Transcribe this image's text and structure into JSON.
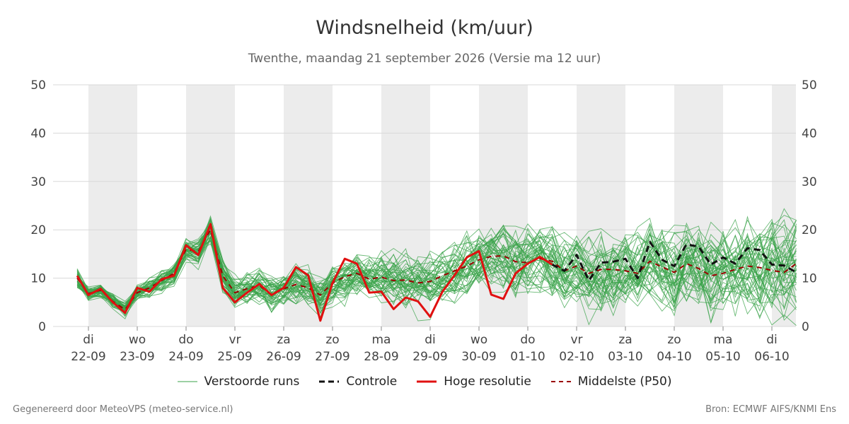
{
  "header": {
    "title": "Windsnelheid (km/uur)",
    "subtitle": "Twenthe, maandag 21 september 2026 (Versie ma 12 uur)"
  },
  "footer": {
    "left": "Gegenereerd door MeteoVPS (meteo-service.nl)",
    "right": "Bron: ECMWF AIFS/KNMI Ens"
  },
  "legend": [
    {
      "label": "Verstoorde runs",
      "color": "#3aa34a",
      "style": "thin-solid"
    },
    {
      "label": "Controle",
      "color": "#111111",
      "style": "dashed"
    },
    {
      "label": "Hoge resolutie",
      "color": "#e01010",
      "style": "solid"
    },
    {
      "label": "Middelste (P50)",
      "color": "#9b0000",
      "style": "dashed"
    }
  ],
  "chart_data": {
    "type": "line",
    "ylim": [
      0,
      50
    ],
    "yticks": [
      0,
      10,
      20,
      30,
      40,
      50
    ],
    "grid": true,
    "day_labels": [
      {
        "day": "di",
        "date": "22-09"
      },
      {
        "day": "wo",
        "date": "23-09"
      },
      {
        "day": "do",
        "date": "24-09"
      },
      {
        "day": "vr",
        "date": "25-09"
      },
      {
        "day": "za",
        "date": "26-09"
      },
      {
        "day": "zo",
        "date": "27-09"
      },
      {
        "day": "ma",
        "date": "28-09"
      },
      {
        "day": "di",
        "date": "29-09"
      },
      {
        "day": "wo",
        "date": "30-09"
      },
      {
        "day": "do",
        "date": "01-10"
      },
      {
        "day": "vr",
        "date": "02-10"
      },
      {
        "day": "za",
        "date": "03-10"
      },
      {
        "day": "zo",
        "date": "04-10"
      },
      {
        "day": "ma",
        "date": "05-10"
      },
      {
        "day": "di",
        "date": "06-10"
      }
    ],
    "shaded_days": [
      0,
      2,
      4,
      6,
      8,
      10,
      12,
      14
    ],
    "x_start_day_offset": -0.23,
    "x_end_day_offset": 14.5,
    "series": [
      {
        "name": "Hoge resolutie",
        "color": "#e01010",
        "x": [
          -0.23,
          0,
          0.25,
          0.5,
          0.75,
          1,
          1.25,
          1.5,
          1.75,
          2,
          2.25,
          2.5,
          2.75,
          3,
          3.25,
          3.5,
          3.75,
          4,
          4.25,
          4.5,
          4.75,
          5,
          5.25,
          5.5,
          5.75,
          6,
          6.25,
          6.5,
          6.75,
          7,
          7.25,
          7.5,
          7.75,
          8,
          8.25,
          8.5,
          8.75,
          9,
          9.25,
          9.5
        ],
        "values": [
          10.5,
          6.5,
          7.8,
          5.0,
          2.8,
          8.0,
          7.2,
          9.8,
          10.5,
          16.8,
          14.8,
          21.2,
          8.0,
          5.0,
          7.0,
          8.8,
          6.5,
          8.0,
          12.3,
          10.6,
          1.2,
          9.0,
          14.0,
          13.0,
          7.0,
          7.2,
          3.6,
          6.0,
          5.2,
          2.0,
          7.2,
          10.6,
          14.3,
          15.6,
          6.6,
          5.7,
          11.0,
          13.0,
          14.4,
          12.8
        ]
      },
      {
        "name": "Controle",
        "color": "#111111",
        "x": [
          9.5,
          9.75,
          10,
          10.25,
          10.5,
          10.75,
          11,
          11.25,
          11.5,
          11.75,
          12,
          12.25,
          12.5,
          12.75,
          13,
          13.25,
          13.5,
          13.75,
          14,
          14.25,
          14.5
        ],
        "values": [
          12.8,
          11.5,
          14.8,
          9.5,
          13.2,
          13.4,
          14.0,
          10.0,
          17.5,
          13.8,
          12.5,
          17.0,
          16.5,
          12.8,
          14.3,
          13.0,
          16.2,
          15.8,
          12.8,
          12.6,
          11.2
        ]
      },
      {
        "name": "Middelste (P50)",
        "color": "#9b0000",
        "x": [
          -0.23,
          0,
          0.25,
          0.5,
          0.75,
          1,
          1.25,
          1.5,
          1.75,
          2,
          2.25,
          2.5,
          2.75,
          3,
          3.25,
          3.5,
          3.75,
          4,
          4.25,
          4.5,
          4.75,
          5,
          5.25,
          5.5,
          5.75,
          6,
          6.25,
          6.5,
          6.75,
          7,
          7.25,
          7.5,
          7.75,
          8,
          8.25,
          8.5,
          8.75,
          9,
          9.25,
          9.5,
          9.75,
          10,
          10.25,
          10.5,
          10.75,
          11,
          11.25,
          11.5,
          11.75,
          12,
          12.25,
          12.5,
          12.75,
          13,
          13.25,
          13.5,
          13.75,
          14,
          14.25,
          14.5
        ],
        "values": [
          10.0,
          6.8,
          7.5,
          5.2,
          3.5,
          7.0,
          8.0,
          9.5,
          11.0,
          16.0,
          15.5,
          20.0,
          10.5,
          7.0,
          7.8,
          8.5,
          6.5,
          7.8,
          8.7,
          8.0,
          6.5,
          9.0,
          10.3,
          11.0,
          9.8,
          10.2,
          9.5,
          9.6,
          9.0,
          9.3,
          10.5,
          11.5,
          12.5,
          13.8,
          14.5,
          14.6,
          13.4,
          13.2,
          14.0,
          13.5,
          11.5,
          12.5,
          11.0,
          11.8,
          11.8,
          11.5,
          11.0,
          13.5,
          12.3,
          11.2,
          13.0,
          12.0,
          10.5,
          11.0,
          11.8,
          12.5,
          12.2,
          11.6,
          11.2,
          13.0
        ]
      }
    ]
  }
}
